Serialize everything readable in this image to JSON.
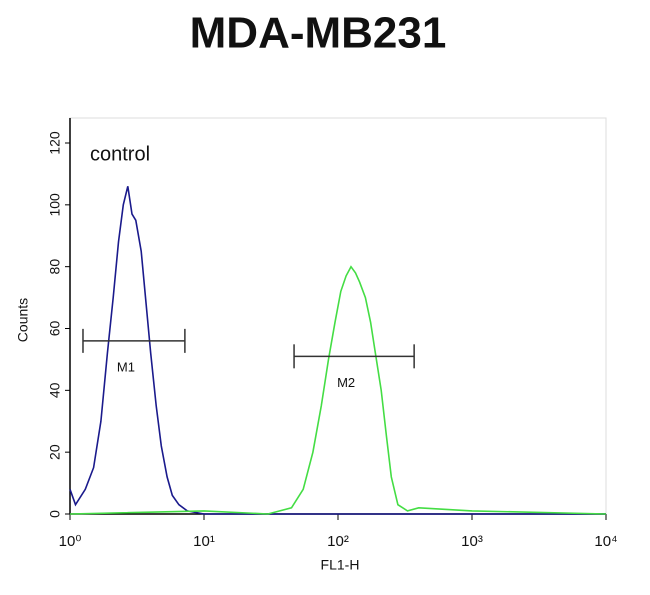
{
  "chart_data": {
    "type": "line",
    "title": "MDA-MB231",
    "x_label": "FL1-H",
    "y_label": "Counts",
    "x_scale": "log",
    "xlim": [
      1,
      10000
    ],
    "xticks": [
      {
        "value": 1,
        "label": "10⁰"
      },
      {
        "value": 10,
        "label": "10¹"
      },
      {
        "value": 100,
        "label": "10²"
      },
      {
        "value": 1000,
        "label": "10³"
      },
      {
        "value": 10000,
        "label": "10⁴"
      }
    ],
    "ylim": [
      0,
      120
    ],
    "yticks": [
      0,
      20,
      40,
      60,
      80,
      100,
      120
    ],
    "series": [
      {
        "name": "control",
        "color": "#1a1a8c",
        "x": [
          1.0,
          1.1,
          1.3,
          1.5,
          1.7,
          1.9,
          2.1,
          2.3,
          2.5,
          2.7,
          2.9,
          3.1,
          3.4,
          3.7,
          4.0,
          4.4,
          4.8,
          5.3,
          5.8,
          6.5,
          7.5,
          10,
          30,
          100,
          1000,
          10000
        ],
        "values": [
          8,
          3,
          8,
          15,
          30,
          52,
          70,
          88,
          100,
          106,
          97,
          95,
          85,
          68,
          52,
          35,
          22,
          12,
          6,
          3,
          1,
          0,
          0,
          0,
          0,
          0
        ]
      },
      {
        "color": "#44dd44",
        "x": [
          1,
          10,
          30,
          45,
          55,
          65,
          75,
          85,
          95,
          105,
          115,
          125,
          135,
          145,
          160,
          175,
          190,
          210,
          230,
          250,
          280,
          330,
          400,
          1000,
          10000
        ],
        "values": [
          0,
          1,
          0,
          2,
          8,
          20,
          35,
          50,
          62,
          72,
          77,
          80,
          78,
          75,
          70,
          62,
          52,
          40,
          25,
          12,
          3,
          1,
          2,
          1,
          0
        ]
      }
    ],
    "markers": [
      {
        "label": "M1",
        "x": [
          1.25,
          7.2
        ],
        "y": 56
      },
      {
        "label": "M2",
        "x": [
          47,
          370
        ],
        "y": 51
      }
    ]
  }
}
